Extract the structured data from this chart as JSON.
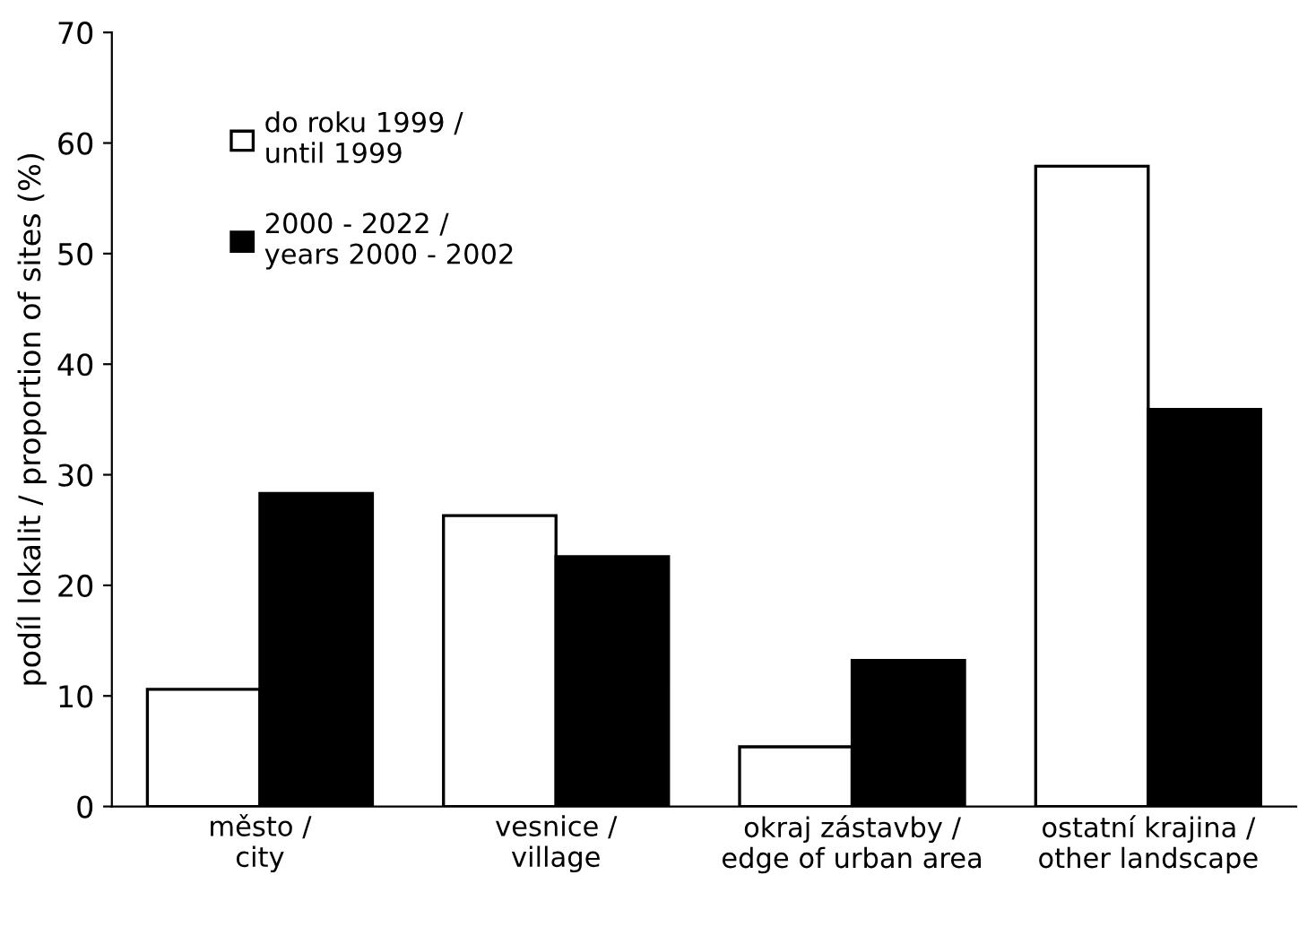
{
  "chart_data": {
    "type": "bar",
    "categories": [
      "město /\ncity",
      "vesnice /\nvillage",
      "okraj zástavby /\nedge of urban area",
      "ostatní krajina /\nother landscape"
    ],
    "series": [
      {
        "name": "do roku 1999 /\nuntil 1999",
        "color": "#ffffff",
        "values": [
          10.6,
          26.3,
          5.4,
          57.9
        ]
      },
      {
        "name": "2000 - 2022 /\nyears 2000 - 2002",
        "color": "#000000",
        "values": [
          28.3,
          22.6,
          13.2,
          35.9
        ]
      }
    ],
    "ylabel": "podíl lokalit / proportion of sites (%)",
    "ylim": [
      0,
      70
    ],
    "yticks": [
      0,
      10,
      20,
      30,
      40,
      50,
      60,
      70
    ],
    "grid": false,
    "legend": "top left"
  }
}
